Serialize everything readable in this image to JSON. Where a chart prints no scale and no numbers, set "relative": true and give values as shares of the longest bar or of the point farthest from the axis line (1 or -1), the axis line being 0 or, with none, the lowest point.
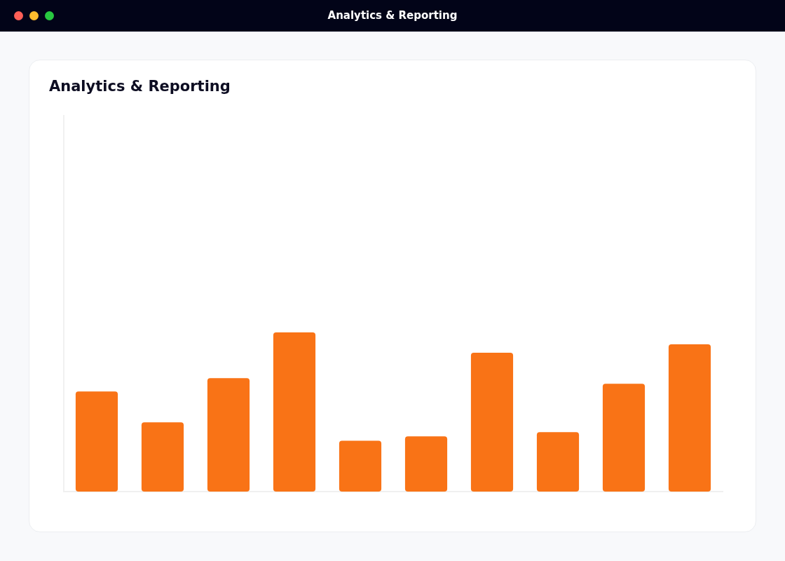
{
  "chart_data": {
    "type": "bar",
    "title": "Analytics & Reporting",
    "categories": [
      null,
      null,
      null,
      null,
      null,
      null,
      null,
      null,
      null,
      null
    ],
    "values": [
      0.629,
      0.435,
      0.713,
      1,
      0.32,
      0.347,
      0.872,
      0.373,
      0.678,
      0.925
    ],
    "color": "#f97316",
    "relative": true,
    "grid": false,
    "legend": false
  }
}
